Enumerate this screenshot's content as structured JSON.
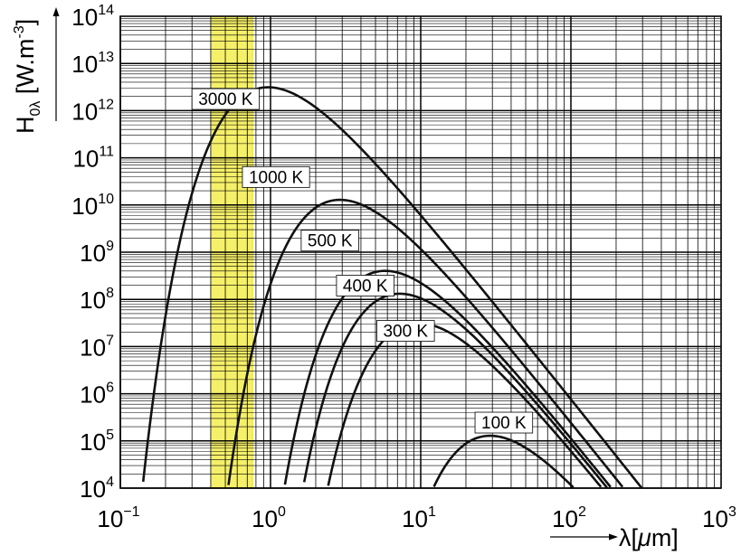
{
  "chart_data": {
    "type": "line",
    "title": "",
    "xlabel": {
      "prefix": "λ[",
      "mu": "μ",
      "suffix": "m]"
    },
    "ylabel": {
      "main": "H",
      "sub": "0λ",
      "unit_open": " [W.m",
      "unit_exp": "-3",
      "unit_close": "]"
    },
    "x_scale": "log",
    "y_scale": "log",
    "xlim": [
      0.1,
      1000
    ],
    "ylim": [
      10000,
      100000000000000
    ],
    "x_ticks": [
      {
        "base": "10",
        "exp": "−1",
        "value": 0.1
      },
      {
        "base": "10",
        "exp": "0",
        "value": 1
      },
      {
        "base": "10",
        "exp": "1",
        "value": 10
      },
      {
        "base": "10",
        "exp": "2",
        "value": 100
      },
      {
        "base": "10",
        "exp": "3",
        "value": 1000
      }
    ],
    "y_ticks": [
      {
        "base": "10",
        "exp": "4",
        "value": 10000
      },
      {
        "base": "10",
        "exp": "5",
        "value": 100000
      },
      {
        "base": "10",
        "exp": "6",
        "value": 1000000
      },
      {
        "base": "10",
        "exp": "7",
        "value": 10000000
      },
      {
        "base": "10",
        "exp": "8",
        "value": 100000000
      },
      {
        "base": "10",
        "exp": "9",
        "value": 1000000000
      },
      {
        "base": "10",
        "exp": "10",
        "value": 10000000000
      },
      {
        "base": "10",
        "exp": "11",
        "value": 100000000000
      },
      {
        "base": "10",
        "exp": "12",
        "value": 1000000000000
      },
      {
        "base": "10",
        "exp": "13",
        "value": 10000000000000
      },
      {
        "base": "10",
        "exp": "14",
        "value": 100000000000000
      }
    ],
    "grid": true,
    "highlight_band": {
      "x_from": 0.4,
      "x_to": 0.76,
      "color": "#f5f06a",
      "edge_color": "#e6d800"
    },
    "line_color": "#111111",
    "series": [
      {
        "name": "3000 K",
        "temperature_K": 3000
      },
      {
        "name": "1000 K",
        "temperature_K": 1000
      },
      {
        "name": "500 K",
        "temperature_K": 500
      },
      {
        "name": "400 K",
        "temperature_K": 400
      },
      {
        "name": "300 K",
        "temperature_K": 300
      },
      {
        "name": "100 K",
        "temperature_K": 100
      }
    ],
    "annotations": [
      {
        "text": "3000 K",
        "x": 0.3,
        "y": 1800000000000
      },
      {
        "text": "1000 K",
        "x": 0.65,
        "y": 40000000000
      },
      {
        "text": "500 K",
        "x": 1.6,
        "y": 1800000000
      },
      {
        "text": "400 K",
        "x": 2.75,
        "y": 200000000
      },
      {
        "text": "300 K",
        "x": 5.1,
        "y": 22000000
      },
      {
        "text": "100 K",
        "x": 23,
        "y": 250000
      }
    ]
  }
}
